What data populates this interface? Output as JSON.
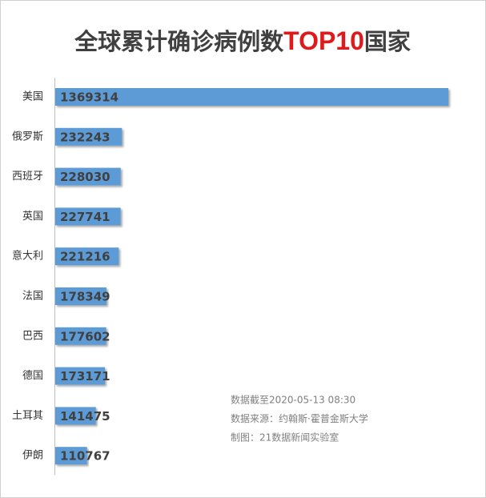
{
  "chart_data": {
    "type": "bar",
    "orientation": "horizontal",
    "title": [
      "全球累计确诊病例数",
      "TOP10",
      "国家"
    ],
    "categories": [
      "美国",
      "俄罗斯",
      "西班牙",
      "英国",
      "意大利",
      "法国",
      "巴西",
      "德国",
      "土耳其",
      "伊朗"
    ],
    "values": [
      1369314,
      232243,
      228030,
      227741,
      221216,
      178349,
      177602,
      173171,
      141475,
      110767
    ],
    "color": "#5b9bd5",
    "notes": [
      "数据截至2020-05-13 08:30",
      "数据来源：约翰斯·霍普金斯大学",
      "制图：21数据新闻实验室"
    ]
  }
}
